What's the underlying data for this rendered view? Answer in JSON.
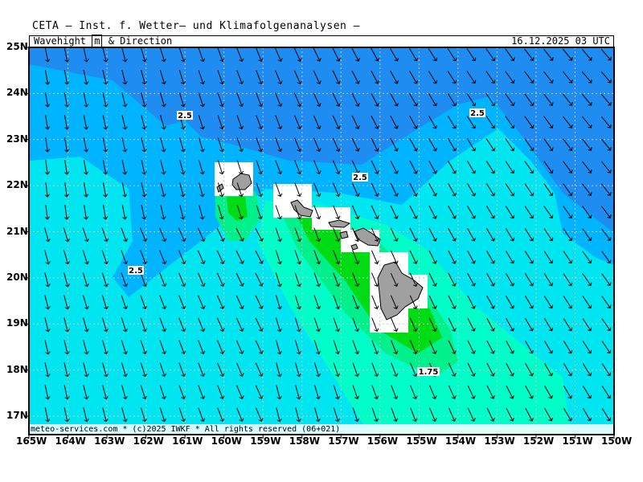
{
  "header": {
    "title": "CETA — Inst. f. Wetter— und Klimafolgenanalysen —",
    "parameter_prefix": "Wavehight ",
    "unit": "m",
    "parameter_suffix": " & Direction",
    "valid_time": "16.12.2025 03 UTC"
  },
  "footer": {
    "credit": "meteo-services.com * (c)2025 IWKF * All rights reserved (06+021)"
  },
  "map": {
    "region": "Hawaiian Islands",
    "lon_range": [
      -165,
      -150
    ],
    "lat_range": [
      16.6,
      25
    ],
    "x_tick_labels": [
      "165W",
      "164W",
      "163W",
      "162W",
      "161W",
      "160W",
      "159W",
      "158W",
      "157W",
      "156W",
      "155W",
      "154W",
      "153W",
      "152W",
      "151W",
      "150W"
    ],
    "y_tick_labels": [
      "25N",
      "24N",
      "23N",
      "22N",
      "21N",
      "20N",
      "19N",
      "18N",
      "17N"
    ],
    "contour_labels": [
      "2.5",
      "2.5",
      "2.5",
      "2.5",
      "1.75"
    ],
    "wave_direction": "mostly from the north-northwest, arrows pointing south-southeast",
    "colors": {
      "band_2_5_plus": "#1e8cf0",
      "band_2_25": "#00b4ff",
      "band_2_0": "#00e6f0",
      "band_1_75": "#00ffc8",
      "band_1_5": "#00f08c",
      "band_1_25": "#00dc14",
      "land": "#a0a0a0",
      "grid": "#c8c8c8"
    }
  }
}
